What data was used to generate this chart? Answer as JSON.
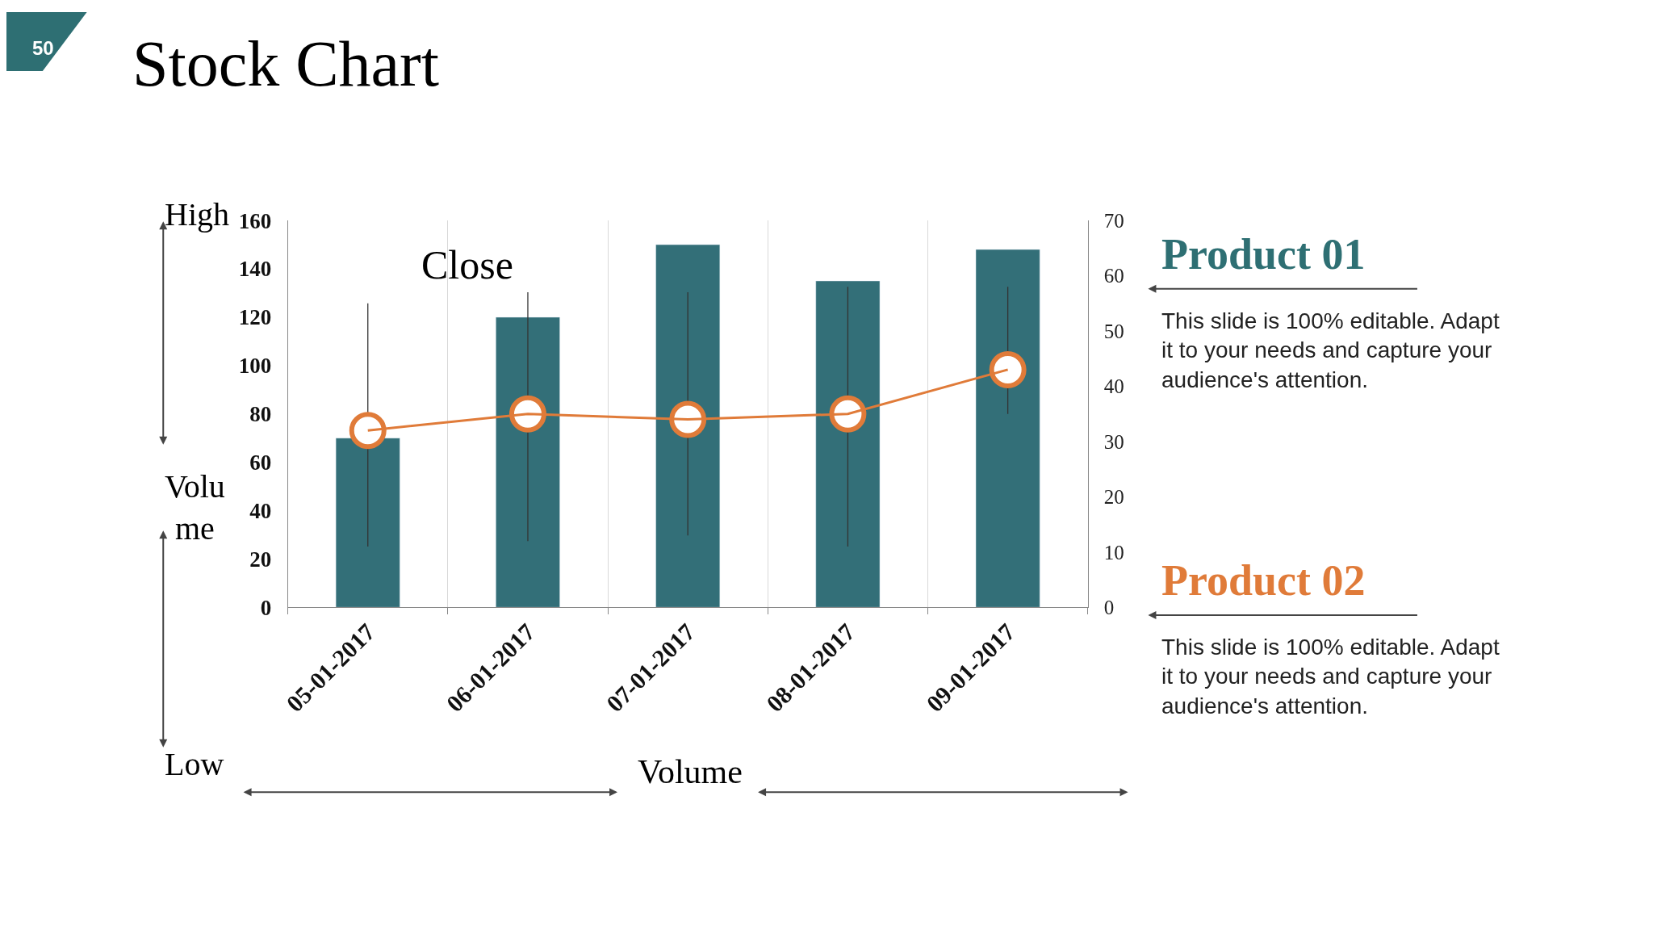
{
  "chart_data": [
    {
      "type": "bar",
      "title": "Stock Chart",
      "categories": [
        "05-01-2017",
        "06-01-2017",
        "07-01-2017",
        "08-01-2017",
        "09-01-2017"
      ],
      "series": [
        {
          "type": "bar",
          "color": "#336f78",
          "values": [
            70,
            120,
            150,
            135,
            148
          ]
        },
        {
          "type": "line",
          "name": "Close",
          "axis": "y2",
          "color": "#e07b39",
          "marker": "circle",
          "values": [
            32,
            35,
            34,
            35,
            43
          ],
          "errors": [
            [
              11,
              55
            ],
            [
              12,
              57
            ],
            [
              13,
              57
            ],
            [
              11,
              58
            ],
            [
              35,
              58
            ]
          ]
        }
      ],
      "ylim": [
        0,
        160
      ],
      "yticks": [
        0,
        20,
        40,
        60,
        80,
        100,
        120,
        140,
        160
      ],
      "y2lim": [
        0,
        70
      ],
      "y2ticks": [
        0,
        10,
        20,
        30,
        40,
        50,
        60,
        70
      ],
      "xlabel": "Volume",
      "ylabel": "Volu me",
      "annotations": [
        "50",
        "High",
        "Low"
      ],
      "grid": "x"
    },
    {
      "type": "other",
      "colors": [
        "#2e6f73",
        "#e07b39"
      ],
      "annotations": [
        "Product 01",
        "This slide is 100% editable. Adapt it to your needs and capture your audience's attention.",
        "Product 02",
        "This slide is 100% editable. Adapt it to your needs and capture your audience's attention."
      ]
    }
  ]
}
